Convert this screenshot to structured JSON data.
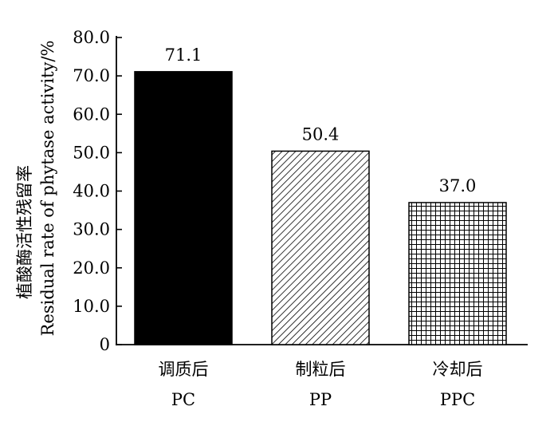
{
  "chart_data": {
    "type": "bar",
    "categories": [
      {
        "zh": "调质后",
        "en": "PC"
      },
      {
        "zh": "制粒后",
        "en": "PP"
      },
      {
        "zh": "冷却后",
        "en": "PPC"
      }
    ],
    "values": [
      71.1,
      50.4,
      37.0
    ],
    "value_labels": [
      "71.1",
      "50.4",
      "37.0"
    ],
    "ylabel_zh": "植酸酶活性残留率",
    "ylabel_en": "Residual rate of phytase activity/%",
    "ylim": [
      0,
      80
    ],
    "yticks": [
      0,
      10,
      20,
      30,
      40,
      50,
      60,
      70,
      80
    ],
    "ytick_labels": [
      "0",
      "10.0",
      "20.0",
      "30.0",
      "40.0",
      "50.0",
      "60.0",
      "70.0",
      "80.0"
    ],
    "bar_fills": [
      "solid-black",
      "diagonal-hatch",
      "grid-crosshatch"
    ],
    "grid": false,
    "legend": "none"
  }
}
